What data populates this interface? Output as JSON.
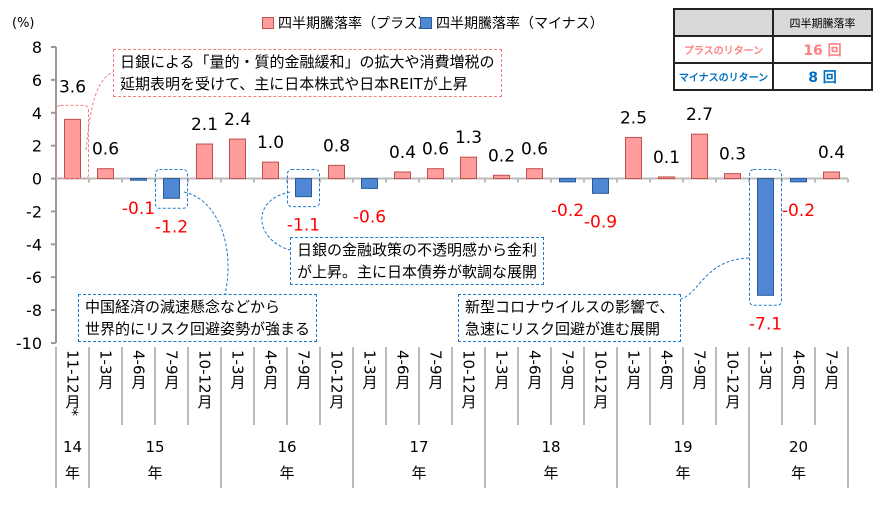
{
  "chart_data": {
    "type": "bar",
    "ylabel": "(%)",
    "ylim": [
      -10,
      8
    ],
    "yticks": [
      8,
      6,
      4,
      2,
      0,
      -2,
      -4,
      -6,
      -8,
      -10
    ],
    "categories": [
      "11-12月*",
      "1-3月",
      "4-6月",
      "7-9月",
      "10-12月",
      "1-3月",
      "4-6月",
      "7-9月",
      "10-12月",
      "1-3月",
      "4-6月",
      "7-9月",
      "10-12月",
      "1-3月",
      "4-6月",
      "7-9月",
      "10-12月",
      "1-3月",
      "4-6月",
      "7-9月",
      "10-12月",
      "1-3月",
      "4-6月",
      "7-9月"
    ],
    "years": [
      {
        "label": "14",
        "suffix": "年",
        "start": 0,
        "end": 0
      },
      {
        "label": "15",
        "suffix": "年",
        "start": 1,
        "end": 4
      },
      {
        "label": "16",
        "suffix": "年",
        "start": 5,
        "end": 8
      },
      {
        "label": "17",
        "suffix": "年",
        "start": 9,
        "end": 12
      },
      {
        "label": "18",
        "suffix": "年",
        "start": 13,
        "end": 16
      },
      {
        "label": "19",
        "suffix": "年",
        "start": 17,
        "end": 20
      },
      {
        "label": "20",
        "suffix": "年",
        "start": 21,
        "end": 23
      }
    ],
    "values": [
      3.6,
      0.6,
      -0.1,
      -1.2,
      2.1,
      2.4,
      1.0,
      -1.1,
      0.8,
      -0.6,
      0.4,
      0.6,
      1.3,
      0.2,
      0.6,
      -0.2,
      -0.9,
      2.5,
      0.1,
      2.7,
      0.3,
      -7.1,
      -0.2,
      0.4
    ],
    "series": [
      {
        "name": "四半期騰落率（プラス）",
        "color": "#ff9c9c",
        "border": "#c0504d"
      },
      {
        "name": "四半期騰落率（マイナス）",
        "color": "#4f87d4",
        "border": "#2a5a9a"
      }
    ],
    "label_colors": {
      "positive": "#000000",
      "negative": "#ff0000"
    },
    "legend_position": "top",
    "grid": false
  },
  "summary_table": {
    "header": "四半期騰落率",
    "rows": [
      {
        "label": "プラスのリターン",
        "value": "16 回",
        "color": "#ff8080"
      },
      {
        "label": "マイナスのリターン",
        "value": "8 回",
        "color": "#0070c0"
      }
    ]
  },
  "annotations": [
    {
      "lines": [
        "日銀による「量的・質的金融緩和」の拡大や消費増税の",
        "延期表明を受けて、主に日本株式や日本REITが上昇"
      ]
    },
    {
      "lines": [
        "中国経済の減速懸念などから",
        "世界的にリスク回避姿勢が強まる"
      ]
    },
    {
      "lines": [
        "日銀の金融政策の不透明感から金利",
        "が上昇。主に日本債券が軟調な展開"
      ]
    },
    {
      "lines": [
        "新型コロナウイルスの影響で、",
        "急速にリスク回避が進む展開"
      ]
    }
  ]
}
